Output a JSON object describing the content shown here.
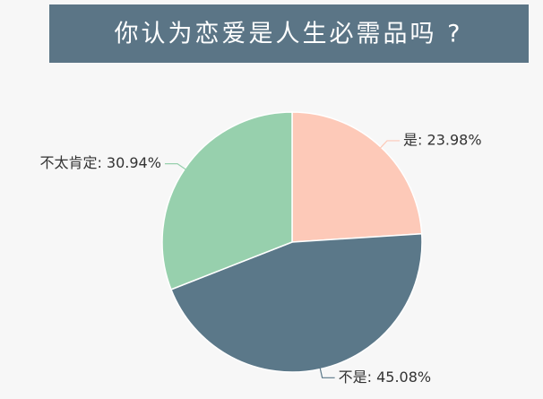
{
  "chart_data": {
    "type": "pie",
    "title": "你认为恋爱是人生必需品吗 ?",
    "values": [
      23.98,
      45.08,
      30.94
    ],
    "value_labels": [
      "是: 23.98%",
      "不是: 45.08%",
      "不太肯定: 30.94%"
    ],
    "colors": [
      "#fdc9b8",
      "#5b7889",
      "#97d0ad"
    ]
  }
}
